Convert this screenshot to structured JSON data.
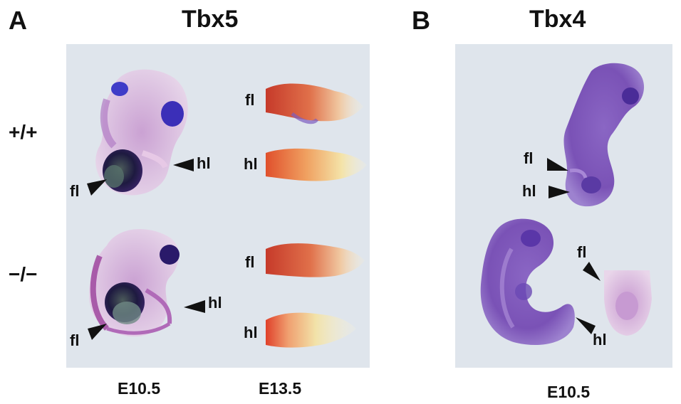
{
  "panel_a": {
    "letter": "A",
    "gene": "Tbx5",
    "genotypes": [
      "+/+",
      "−/−"
    ],
    "stages": [
      "E10.5",
      "E13.5"
    ],
    "wt": {
      "embryo_hl": "hl",
      "embryo_fl": "fl",
      "limb_fl": "fl",
      "limb_hl": "hl"
    },
    "mut": {
      "embryo_hl": "hl",
      "embryo_fl": "fl",
      "limb_fl": "fl",
      "limb_hl": "hl"
    }
  },
  "panel_b": {
    "letter": "B",
    "gene": "Tbx4",
    "stage": "E10.5",
    "top": {
      "fl": "fl",
      "hl": "hl"
    },
    "bottom": {
      "fl": "fl",
      "hl": "hl"
    }
  },
  "colors": {
    "background": "#dfe5ec",
    "stain_purple": "#7a4fb0",
    "stain_dark": "#2a1a55",
    "limb_red": "#d8462e",
    "limb_yellow": "#efe3a8"
  }
}
